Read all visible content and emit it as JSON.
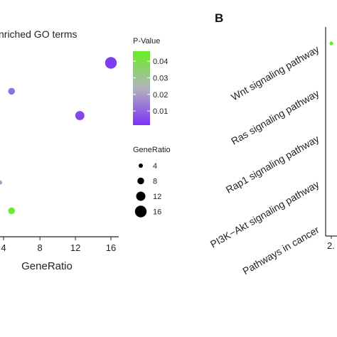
{
  "chart_data": [
    {
      "type": "scatter",
      "panel": "A",
      "title": "nriched GO terms",
      "xlabel": "GeneRatio",
      "x_ticks": [
        "4",
        "8",
        "12",
        "16"
      ],
      "xlim": [
        3.5,
        16.8
      ],
      "points": [
        {
          "x": 16,
          "y": 0.83,
          "size": 16,
          "pvalue": 0.003
        },
        {
          "x": 4.8,
          "y": 0.69,
          "size": 8,
          "pvalue": 0.012
        },
        {
          "x": 12.5,
          "y": 0.57,
          "size": 12,
          "pvalue": 0.005
        },
        {
          "x": 3.5,
          "y": 0.24,
          "size": 4,
          "pvalue": 0.02
        },
        {
          "x": 4.8,
          "y": 0.1,
          "size": 8,
          "pvalue": 0.043
        }
      ],
      "legend_pvalue": {
        "title": "P-Value",
        "ticks": [
          "0.04",
          "0.03",
          "0.02",
          "0.01"
        ],
        "tick_values": [
          0.04,
          0.03,
          0.02,
          0.01
        ],
        "range": [
          0.0015,
          0.046
        ],
        "colors": {
          "high": "#66ee22",
          "mid": "#b3b3bd",
          "low": "#7a33f5"
        }
      },
      "legend_size": {
        "title": "GeneRatio",
        "entries": [
          "4",
          "8",
          "12",
          "16"
        ],
        "values": [
          4,
          8,
          12,
          16
        ]
      }
    },
    {
      "type": "scatter",
      "panel": "B",
      "panel_label": "B",
      "categories": [
        "Wnt signaling pathway",
        "Ras signaling pathway",
        "Rap1 signaling pathway",
        "PI3K−Akt signaling pathway",
        "Pathways in cancer"
      ],
      "x_tick_partial": "2.",
      "visible_point": {
        "category": "Wnt signaling pathway",
        "color": "#66ee22"
      }
    }
  ]
}
